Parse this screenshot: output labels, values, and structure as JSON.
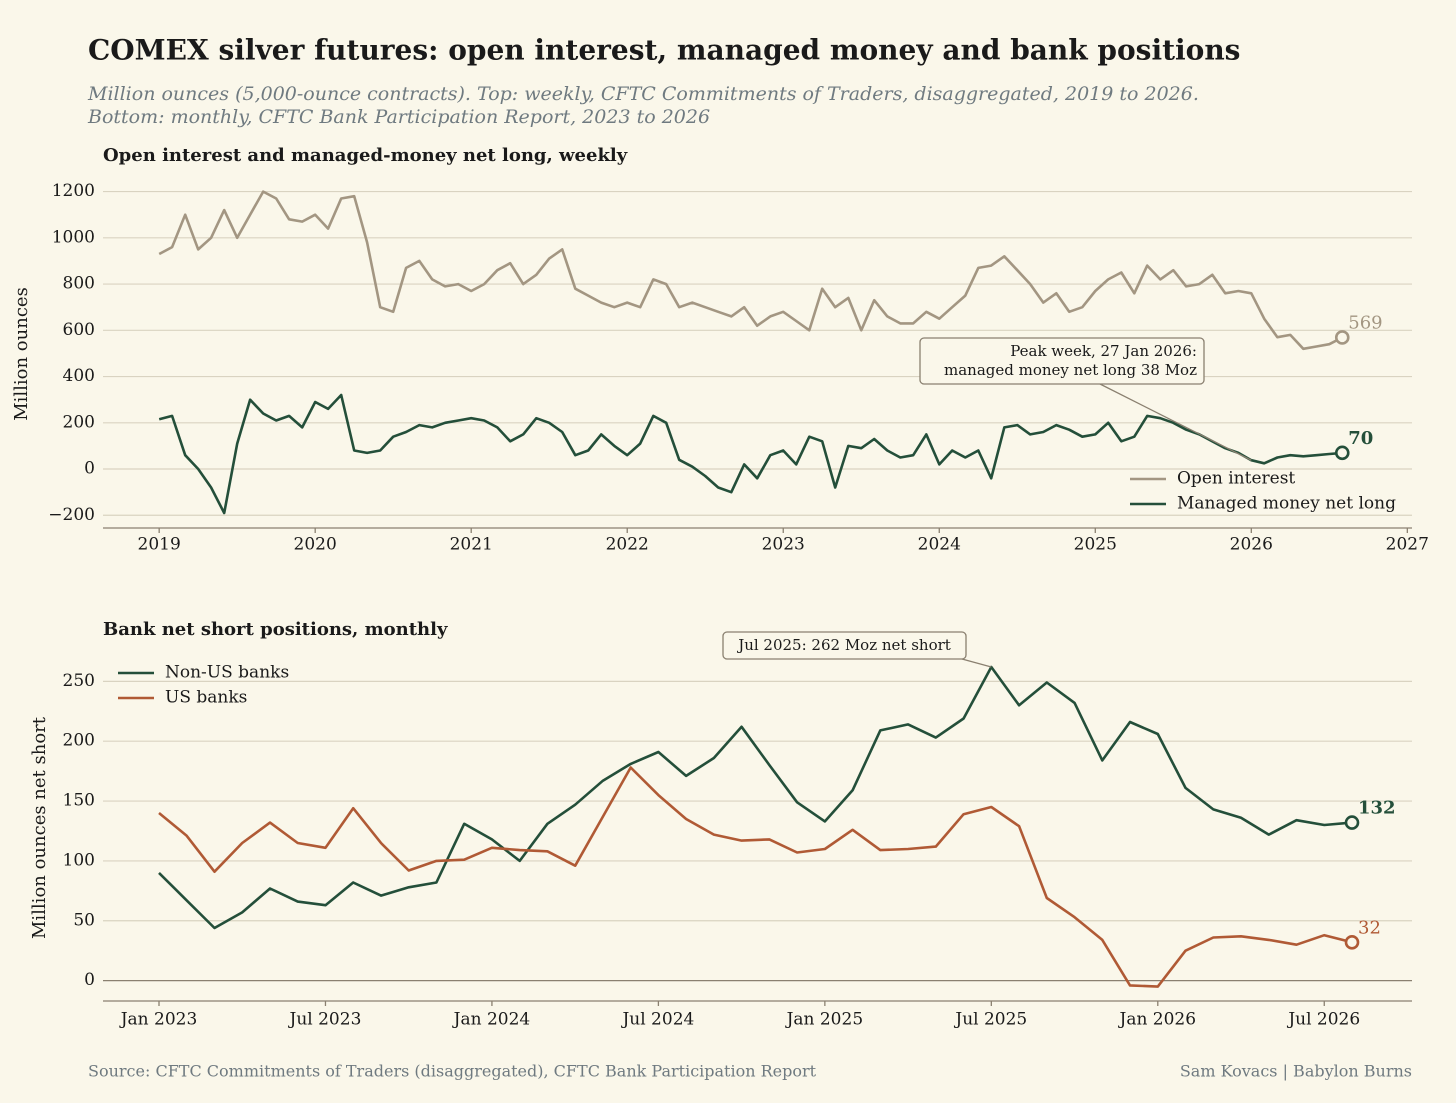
{
  "title": "COMEX silver futures: open interest, managed money and bank positions",
  "subtitle": [
    "Million ounces (5,000-ounce contracts). Top: weekly, CFTC Commitments of Traders, disaggregated, 2019 to 2026.",
    "Bottom: monthly, CFTC Bank Participation Report, 2023 to 2026"
  ],
  "source": "Source: CFTC Commitments of Traders (disaggregated), CFTC Bank Participation Report",
  "credit": "Sam Kovacs | Babylon Burns",
  "chart_data": [
    {
      "type": "line",
      "title": "Open interest and managed-money net long, weekly",
      "y_label": "Million ounces",
      "x": [
        2019,
        2019.083,
        2019.167,
        2019.25,
        2019.333,
        2019.417,
        2019.5,
        2019.583,
        2019.667,
        2019.75,
        2019.833,
        2019.917,
        2020,
        2020.083,
        2020.167,
        2020.25,
        2020.333,
        2020.417,
        2020.5,
        2020.583,
        2020.667,
        2020.75,
        2020.833,
        2020.917,
        2021,
        2021.083,
        2021.167,
        2021.25,
        2021.333,
        2021.417,
        2021.5,
        2021.583,
        2021.667,
        2021.75,
        2021.833,
        2021.917,
        2022,
        2022.083,
        2022.167,
        2022.25,
        2022.333,
        2022.417,
        2022.5,
        2022.583,
        2022.667,
        2022.75,
        2022.833,
        2022.917,
        2023,
        2023.083,
        2023.167,
        2023.25,
        2023.333,
        2023.417,
        2023.5,
        2023.583,
        2023.667,
        2023.75,
        2023.833,
        2023.917,
        2024,
        2024.083,
        2024.167,
        2024.25,
        2024.333,
        2024.417,
        2024.5,
        2024.583,
        2024.667,
        2024.75,
        2024.833,
        2024.917,
        2025,
        2025.083,
        2025.167,
        2025.25,
        2025.333,
        2025.417,
        2025.5,
        2025.583,
        2025.667,
        2025.75,
        2025.833,
        2025.917,
        2026,
        2026.083,
        2026.167,
        2026.25,
        2026.333,
        2026.417,
        2026.5,
        2026.583
      ],
      "xlim": [
        2018.64,
        2027.03
      ],
      "xticks": [
        2019,
        2020,
        2021,
        2022,
        2023,
        2024,
        2025,
        2026,
        2027
      ],
      "ylim": [
        -255,
        1250
      ],
      "yticks": [
        {
          "value": -200,
          "label": "−200"
        },
        0,
        200,
        400,
        600,
        800,
        1000,
        1200
      ],
      "grid": true,
      "legend": "lower right",
      "series": [
        {
          "name": "Open interest",
          "color": "#a39682",
          "values": [
            930,
            960,
            1100,
            950,
            1000,
            1120,
            1000,
            1100,
            1200,
            1170,
            1080,
            1070,
            1100,
            1040,
            1170,
            1180,
            980,
            700,
            680,
            870,
            900,
            820,
            790,
            800,
            770,
            800,
            860,
            890,
            800,
            840,
            910,
            950,
            780,
            750,
            720,
            700,
            720,
            700,
            820,
            800,
            700,
            720,
            700,
            680,
            660,
            700,
            620,
            660,
            680,
            640,
            600,
            780,
            700,
            740,
            600,
            730,
            660,
            630,
            630,
            680,
            650,
            700,
            750,
            870,
            880,
            920,
            860,
            800,
            720,
            760,
            680,
            700,
            770,
            820,
            850,
            760,
            880,
            820,
            860,
            790,
            800,
            840,
            760,
            770,
            760,
            650,
            570,
            580,
            520,
            530,
            540,
            569
          ]
        },
        {
          "name": "Managed money net long",
          "color": "#244f3a",
          "values": [
            215,
            230,
            60,
            0,
            -80,
            -190,
            110,
            300,
            240,
            210,
            230,
            180,
            290,
            260,
            320,
            80,
            70,
            80,
            140,
            160,
            190,
            180,
            200,
            210,
            220,
            210,
            180,
            120,
            150,
            220,
            200,
            160,
            60,
            80,
            150,
            100,
            60,
            110,
            230,
            200,
            40,
            10,
            -30,
            -80,
            -100,
            20,
            -40,
            60,
            80,
            20,
            140,
            120,
            -80,
            100,
            90,
            130,
            80,
            50,
            60,
            150,
            20,
            80,
            50,
            80,
            -40,
            180,
            190,
            150,
            160,
            190,
            170,
            140,
            150,
            200,
            120,
            140,
            230,
            220,
            200,
            170,
            150,
            120,
            90,
            70,
            38,
            25,
            50,
            60,
            55,
            60,
            65,
            70
          ]
        }
      ],
      "annotation": [
        "Peak week, 27 Jan 2026:",
        "managed money net long 38 Moz"
      ]
    },
    {
      "type": "line",
      "title": "Bank net short positions, monthly",
      "y_label": "Million ounces net short",
      "categories": [
        "Jan 2023",
        null,
        null,
        null,
        null,
        null,
        "Jul 2023",
        null,
        null,
        null,
        null,
        null,
        "Jan 2024",
        null,
        null,
        null,
        null,
        null,
        "Jul 2024",
        null,
        null,
        null,
        null,
        null,
        "Jan 2025",
        null,
        null,
        null,
        null,
        null,
        "Jul 2025",
        null,
        null,
        null,
        null,
        null,
        "Jan 2026",
        null,
        null,
        null,
        null,
        null,
        "Jul 2026",
        null
      ],
      "ylim": [
        -17,
        272
      ],
      "yticks": [
        0,
        50,
        100,
        150,
        200,
        250
      ],
      "grid": true,
      "legend": "upper left",
      "series": [
        {
          "name": "Non-US banks",
          "color": "#244f3a",
          "values": [
            90,
            67,
            44,
            57,
            77,
            66,
            63,
            82,
            71,
            78,
            82,
            131,
            118,
            100,
            131,
            147,
            167,
            181,
            191,
            171,
            186,
            212,
            180,
            149,
            133,
            159,
            209,
            214,
            203,
            219,
            262,
            230,
            249,
            232,
            184,
            216,
            206,
            161,
            143,
            136,
            122,
            134,
            130,
            132
          ]
        },
        {
          "name": "US banks",
          "color": "#b05a35",
          "values": [
            140,
            121,
            91,
            115,
            132,
            115,
            111,
            144,
            115,
            92,
            100,
            101,
            111,
            109,
            108,
            96,
            137,
            178,
            155,
            135,
            122,
            117,
            118,
            107,
            110,
            126,
            109,
            110,
            112,
            139,
            145,
            129,
            69,
            53,
            34,
            -4,
            -5,
            25,
            36,
            37,
            34,
            30,
            38,
            32
          ]
        }
      ],
      "annotation": [
        "Jul 2025: 262 Moz net short"
      ]
    }
  ]
}
